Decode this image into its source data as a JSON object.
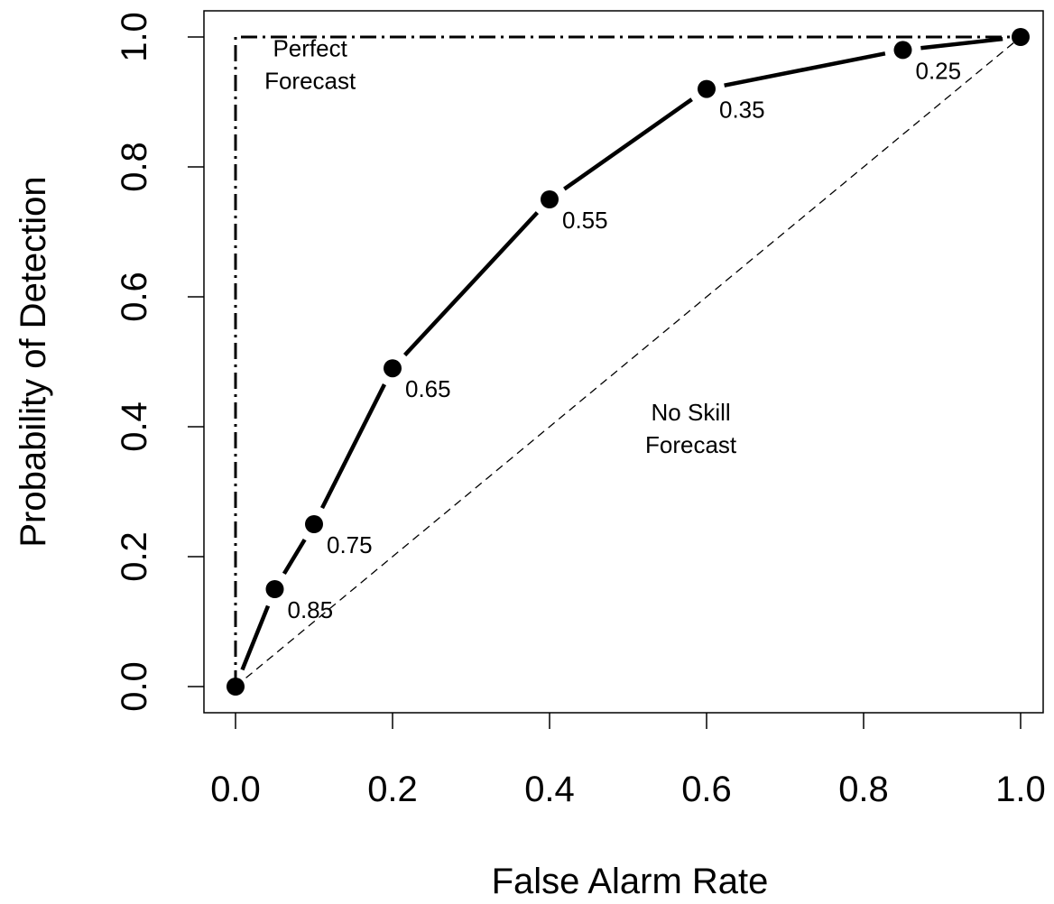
{
  "chart_data": {
    "type": "line",
    "title": "",
    "xlabel": "False Alarm Rate",
    "ylabel": "Probability of Detection",
    "xlim": [
      0,
      1
    ],
    "ylim": [
      0,
      1
    ],
    "xticks": [
      "0.0",
      "0.2",
      "0.4",
      "0.6",
      "0.8",
      "1.0"
    ],
    "yticks": [
      "0.0",
      "0.2",
      "0.4",
      "0.6",
      "0.8",
      "1.0"
    ],
    "grid": false,
    "legend": "none",
    "series": [
      {
        "x": [
          0.0,
          0.05,
          0.1,
          0.2,
          0.4,
          0.6,
          0.85,
          1.0
        ],
        "y": [
          0.0,
          0.15,
          0.25,
          0.49,
          0.75,
          0.92,
          0.98,
          1.0
        ],
        "labels": [
          "",
          "0.85",
          "0.75",
          "0.65",
          "0.55",
          "0.35",
          "0.25",
          ""
        ],
        "color": "#000000",
        "marker": "filled-circle"
      }
    ],
    "reference_lines": [
      {
        "type": "perfect",
        "points": [
          [
            0,
            0
          ],
          [
            0,
            1
          ],
          [
            1,
            1
          ]
        ],
        "style": "dash-dot"
      },
      {
        "type": "no-skill",
        "points": [
          [
            0,
            0
          ],
          [
            1,
            1
          ]
        ],
        "style": "dashed"
      }
    ],
    "annotations": [
      {
        "lines": [
          "Perfect",
          "Forecast"
        ],
        "x": 0.095,
        "y": 0.97
      },
      {
        "lines": [
          "No Skill",
          "Forecast"
        ],
        "x": 0.58,
        "y": 0.41
      }
    ]
  }
}
